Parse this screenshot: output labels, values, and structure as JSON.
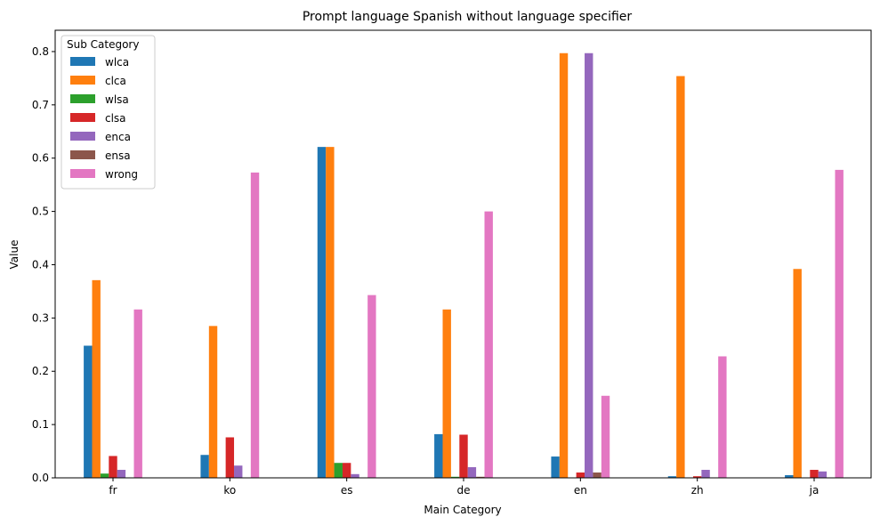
{
  "chart_data": {
    "type": "bar",
    "title": "Prompt language Spanish without language specifier",
    "xlabel": "Main Category",
    "ylabel": "Value",
    "ylim": [
      0,
      0.84
    ],
    "yticks": [
      "0.0",
      "0.1",
      "0.2",
      "0.3",
      "0.4",
      "0.5",
      "0.6",
      "0.7",
      "0.8"
    ],
    "grid": false,
    "legend": {
      "title": "Sub Category",
      "placement": "top-left"
    },
    "categories": [
      "fr",
      "ko",
      "es",
      "de",
      "en",
      "zh",
      "ja"
    ],
    "series": [
      {
        "name": "wlca",
        "color": "#1f77b4",
        "values": [
          0.248,
          0.043,
          0.621,
          0.082,
          0.04,
          0.003,
          0.005
        ]
      },
      {
        "name": "clca",
        "color": "#ff7f0e",
        "values": [
          0.371,
          0.285,
          0.621,
          0.316,
          0.797,
          0.754,
          0.392
        ]
      },
      {
        "name": "wlsa",
        "color": "#2ca02c",
        "values": [
          0.008,
          0.0,
          0.028,
          0.002,
          0.0,
          0.0,
          0.0
        ]
      },
      {
        "name": "clsa",
        "color": "#d62728",
        "values": [
          0.041,
          0.076,
          0.028,
          0.081,
          0.01,
          0.003,
          0.015
        ]
      },
      {
        "name": "enca",
        "color": "#9467bd",
        "values": [
          0.015,
          0.023,
          0.007,
          0.02,
          0.797,
          0.015,
          0.012
        ]
      },
      {
        "name": "ensa",
        "color": "#8c564b",
        "values": [
          0.0,
          0.0,
          0.0,
          0.002,
          0.01,
          0.0,
          0.0
        ]
      },
      {
        "name": "wrong",
        "color": "#e377c2",
        "values": [
          0.316,
          0.573,
          0.343,
          0.5,
          0.154,
          0.228,
          0.578
        ]
      }
    ]
  }
}
